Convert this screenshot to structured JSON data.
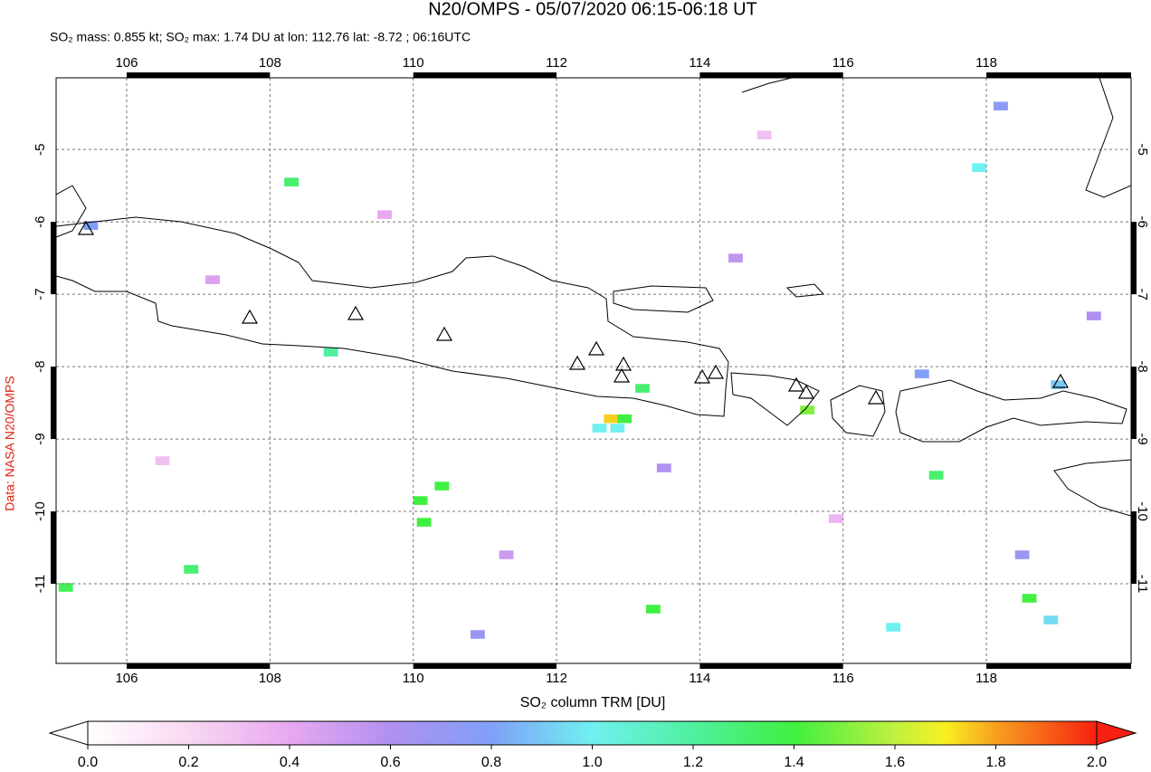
{
  "title": "N20/OMPS - 05/07/2020 06:15-06:18 UT",
  "subtitle": "SO₂ mass: 0.855 kt; SO₂ max: 1.74 DU at lon: 112.76 lat: -8.72 ; 06:16UTC",
  "credit": "Data: NASA N20/OMPS",
  "map": {
    "lonlim": [
      105.015,
      120.02
    ],
    "latlim": [
      -12.1,
      -4.01
    ],
    "lonticks": [
      106,
      108,
      110,
      112,
      114,
      116,
      118
    ],
    "latticks": [
      -5,
      -6,
      -7,
      -8,
      -9,
      -10,
      -11
    ],
    "pixels": [
      {
        "lon": 112.76,
        "lat": -8.72,
        "value": 1.74
      },
      {
        "lon": 112.95,
        "lat": -8.72,
        "value": 1.4
      },
      {
        "lon": 112.6,
        "lat": -8.85,
        "value": 1.0
      },
      {
        "lon": 112.85,
        "lat": -8.85,
        "value": 1.0
      },
      {
        "lon": 113.2,
        "lat": -8.3,
        "value": 1.3
      },
      {
        "lon": 115.5,
        "lat": -8.6,
        "value": 1.5
      },
      {
        "lon": 110.4,
        "lat": -9.65,
        "value": 1.4
      },
      {
        "lon": 110.1,
        "lat": -9.85,
        "value": 1.4
      },
      {
        "lon": 110.15,
        "lat": -10.15,
        "value": 1.4
      },
      {
        "lon": 108.85,
        "lat": -7.8,
        "value": 1.2
      },
      {
        "lon": 108.3,
        "lat": -5.45,
        "value": 1.3
      },
      {
        "lon": 117.3,
        "lat": -9.5,
        "value": 1.3
      },
      {
        "lon": 118.6,
        "lat": -11.2,
        "value": 1.4
      },
      {
        "lon": 113.35,
        "lat": -11.35,
        "value": 1.4
      },
      {
        "lon": 105.15,
        "lat": -11.05,
        "value": 1.35
      },
      {
        "lon": 106.9,
        "lat": -10.8,
        "value": 1.3
      },
      {
        "lon": 117.9,
        "lat": -5.25,
        "value": 1.0
      },
      {
        "lon": 119.0,
        "lat": -8.25,
        "value": 0.9
      },
      {
        "lon": 118.5,
        "lat": -10.6,
        "value": 0.7
      },
      {
        "lon": 105.5,
        "lat": -6.05,
        "value": 0.8
      },
      {
        "lon": 118.2,
        "lat": -4.4,
        "value": 0.75
      },
      {
        "lon": 116.7,
        "lat": -11.6,
        "value": 1.0
      },
      {
        "lon": 118.9,
        "lat": -11.5,
        "value": 0.95
      },
      {
        "lon": 113.5,
        "lat": -9.4,
        "value": 0.6
      },
      {
        "lon": 111.3,
        "lat": -10.6,
        "value": 0.5
      },
      {
        "lon": 107.2,
        "lat": -6.8,
        "value": 0.45
      },
      {
        "lon": 109.6,
        "lat": -5.9,
        "value": 0.4
      },
      {
        "lon": 114.5,
        "lat": -6.5,
        "value": 0.55
      },
      {
        "lon": 115.9,
        "lat": -10.1,
        "value": 0.35
      },
      {
        "lon": 119.5,
        "lat": -7.3,
        "value": 0.6
      },
      {
        "lon": 106.5,
        "lat": -9.3,
        "value": 0.3
      },
      {
        "lon": 110.9,
        "lat": -11.7,
        "value": 0.7
      },
      {
        "lon": 114.9,
        "lat": -4.8,
        "value": 0.3
      },
      {
        "lon": 117.1,
        "lat": -8.1,
        "value": 0.8
      }
    ]
  },
  "colorbar": {
    "label": "SO₂ column TRM [DU]",
    "lim": [
      0,
      2
    ],
    "ticks": [
      {
        "value": 0,
        "label": "0.0"
      },
      {
        "value": 0.2,
        "label": "0.2"
      },
      {
        "value": 0.4,
        "label": "0.4"
      },
      {
        "value": 0.6,
        "label": "0.6"
      },
      {
        "value": 0.8,
        "label": "0.8"
      },
      {
        "value": 1,
        "label": "1.0"
      },
      {
        "value": 1.2,
        "label": "1.2"
      },
      {
        "value": 1.4,
        "label": "1.4"
      },
      {
        "value": 1.6,
        "label": "1.6"
      },
      {
        "value": 1.8,
        "label": "1.8"
      },
      {
        "value": 2,
        "label": "2.0"
      }
    ]
  }
}
